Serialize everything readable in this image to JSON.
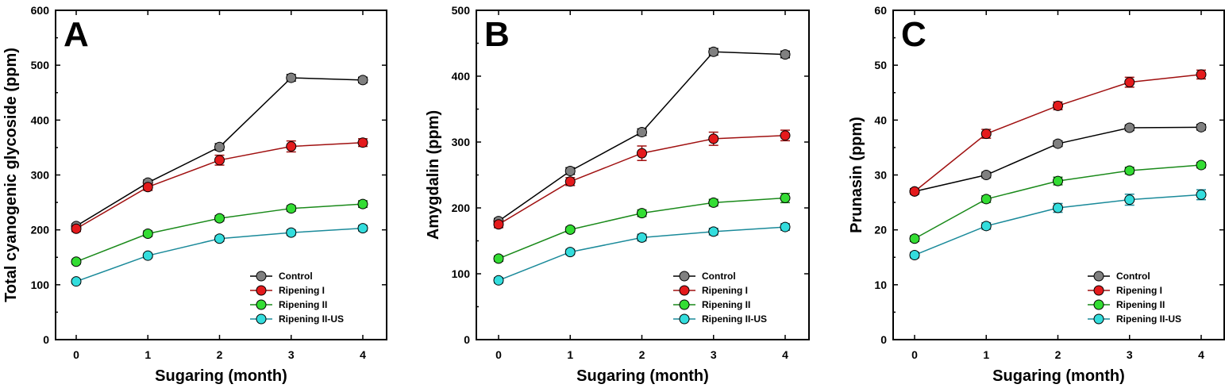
{
  "chart_data": [
    {
      "type": "line",
      "panel_label": "A",
      "xlabel": "Sugaring (month)",
      "ylabel": "Total cyanogenic glycoside (ppm)",
      "x": [
        0,
        1,
        2,
        3,
        4
      ],
      "x_ticks": [
        "0",
        "1",
        "2",
        "3",
        "4"
      ],
      "ylim": [
        0,
        600
      ],
      "y_ticks": [
        "0",
        "100",
        "200",
        "300",
        "400",
        "500",
        "600"
      ],
      "legend_position": "bottom-right",
      "series": [
        {
          "name": "Control",
          "color": "#808080",
          "line_color": "#000000",
          "values": [
            207,
            286,
            351,
            477,
            473
          ],
          "errors": [
            4,
            5,
            6,
            6,
            5
          ]
        },
        {
          "name": "Ripening I",
          "color": "#e41a1c",
          "line_color": "#a01010",
          "values": [
            202,
            278,
            327,
            352,
            359
          ],
          "errors": [
            5,
            6,
            9,
            10,
            7
          ]
        },
        {
          "name": "Ripening II",
          "color": "#33dd33",
          "line_color": "#1a8a1a",
          "values": [
            142,
            193,
            221,
            239,
            247
          ],
          "errors": [
            4,
            5,
            5,
            5,
            6
          ]
        },
        {
          "name": "Ripening II-US",
          "color": "#33dddd",
          "line_color": "#1a8a9a",
          "values": [
            106,
            153,
            184,
            195,
            203
          ],
          "errors": [
            4,
            4,
            5,
            5,
            5
          ]
        }
      ]
    },
    {
      "type": "line",
      "panel_label": "B",
      "xlabel": "Sugaring (month)",
      "ylabel": "Amygdalin (ppm)",
      "x": [
        0,
        1,
        2,
        3,
        4
      ],
      "x_ticks": [
        "0",
        "1",
        "2",
        "3",
        "4"
      ],
      "ylim": [
        0,
        500
      ],
      "y_ticks": [
        "0",
        "100",
        "200",
        "300",
        "400",
        "500"
      ],
      "legend_position": "bottom-right",
      "series": [
        {
          "name": "Control",
          "color": "#808080",
          "line_color": "#000000",
          "values": [
            180,
            256,
            315,
            437,
            433
          ],
          "errors": [
            4,
            5,
            5,
            5,
            5
          ]
        },
        {
          "name": "Ripening I",
          "color": "#e41a1c",
          "line_color": "#a01010",
          "values": [
            175,
            240,
            283,
            305,
            310
          ],
          "errors": [
            5,
            6,
            11,
            10,
            8
          ]
        },
        {
          "name": "Ripening II",
          "color": "#33dd33",
          "line_color": "#1a8a1a",
          "values": [
            123,
            167,
            192,
            208,
            215
          ],
          "errors": [
            4,
            4,
            5,
            5,
            7
          ]
        },
        {
          "name": "Ripening II-US",
          "color": "#33dddd",
          "line_color": "#1a8a9a",
          "values": [
            90,
            133,
            155,
            164,
            171
          ],
          "errors": [
            4,
            4,
            5,
            5,
            5
          ]
        }
      ]
    },
    {
      "type": "line",
      "panel_label": "C",
      "xlabel": "Sugaring (month)",
      "ylabel": "Prunasin (ppm)",
      "x": [
        0,
        1,
        2,
        3,
        4
      ],
      "x_ticks": [
        "0",
        "1",
        "2",
        "3",
        "4"
      ],
      "ylim": [
        0,
        60
      ],
      "y_ticks": [
        "0",
        "10",
        "20",
        "30",
        "40",
        "50",
        "60"
      ],
      "legend_position": "bottom-right",
      "series": [
        {
          "name": "Control",
          "color": "#808080",
          "line_color": "#000000",
          "values": [
            27.0,
            30.0,
            35.7,
            38.6,
            38.7
          ],
          "errors": [
            0.5,
            0.5,
            0.5,
            0.5,
            0.5
          ]
        },
        {
          "name": "Ripening I",
          "color": "#e41a1c",
          "line_color": "#a01010",
          "values": [
            27.0,
            37.5,
            42.6,
            46.9,
            48.3
          ],
          "errors": [
            0.5,
            0.8,
            0.7,
            0.9,
            0.8
          ]
        },
        {
          "name": "Ripening II",
          "color": "#33dd33",
          "line_color": "#1a8a1a",
          "values": [
            18.4,
            25.6,
            28.9,
            30.8,
            31.8
          ],
          "errors": [
            0.5,
            0.6,
            0.7,
            0.6,
            0.5
          ]
        },
        {
          "name": "Ripening II-US",
          "color": "#33dddd",
          "line_color": "#1a8a9a",
          "values": [
            15.4,
            20.7,
            24.0,
            25.5,
            26.4
          ],
          "errors": [
            0.5,
            0.6,
            0.8,
            1.0,
            0.9
          ]
        }
      ]
    }
  ]
}
